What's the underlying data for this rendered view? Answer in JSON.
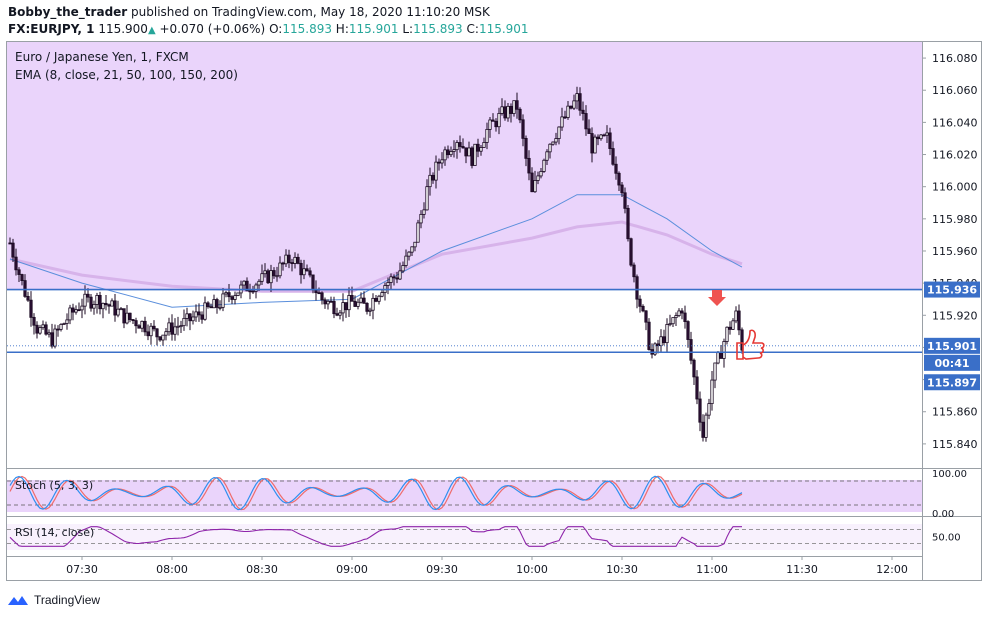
{
  "header": {
    "author": "Bobby_the_trader",
    "published": "published on TradingView.com, May 18, 2020 11:10:20 MSK",
    "symbol": "FX:EURJPY, 1",
    "last": "115.900",
    "change": "+0.070 (+0.06%)",
    "o_label": "O:",
    "o": "115.893",
    "h_label": "H:",
    "h": "115.901",
    "l_label": "L:",
    "l": "115.893",
    "c_label": "C:",
    "c": "115.901"
  },
  "legend": {
    "line1": "Euro / Japanese Yen, 1, FXCM",
    "line2": "EMA (8, close, 21, 50, 100, 150, 200)"
  },
  "chart_data": {
    "type": "candlestick",
    "symbol": "EURJPY",
    "timeframe": "1",
    "price_axis": {
      "ylim": [
        115.825,
        116.09
      ],
      "ticks": [
        "116.080",
        "116.060",
        "116.040",
        "116.020",
        "116.000",
        "115.980",
        "115.960",
        "115.940",
        "115.920",
        "115.900",
        "115.880",
        "115.860",
        "115.840"
      ]
    },
    "time_axis": {
      "xlim": [
        "07:05",
        "12:10"
      ],
      "ticks": [
        "07:30",
        "08:00",
        "08:30",
        "09:00",
        "09:30",
        "10:00",
        "10:30",
        "11:00",
        "11:30",
        "12:00"
      ]
    },
    "price_path": [
      [
        "07:06",
        115.965
      ],
      [
        "07:10",
        115.94
      ],
      [
        "07:15",
        115.912
      ],
      [
        "07:20",
        115.905
      ],
      [
        "07:25",
        115.918
      ],
      [
        "07:30",
        115.928
      ],
      [
        "07:35",
        115.93
      ],
      [
        "07:40",
        115.925
      ],
      [
        "07:45",
        115.918
      ],
      [
        "07:50",
        115.915
      ],
      [
        "07:55",
        115.908
      ],
      [
        "08:00",
        115.912
      ],
      [
        "08:05",
        115.916
      ],
      [
        "08:10",
        115.922
      ],
      [
        "08:15",
        115.926
      ],
      [
        "08:20",
        115.934
      ],
      [
        "08:25",
        115.938
      ],
      [
        "08:30",
        115.942
      ],
      [
        "08:35",
        115.948
      ],
      [
        "08:40",
        115.956
      ],
      [
        "08:45",
        115.944
      ],
      [
        "08:50",
        115.93
      ],
      [
        "08:55",
        115.925
      ],
      [
        "09:00",
        115.928
      ],
      [
        "09:05",
        115.925
      ],
      [
        "09:10",
        115.938
      ],
      [
        "09:15",
        115.945
      ],
      [
        "09:20",
        115.96
      ],
      [
        "09:25",
        115.998
      ],
      [
        "09:30",
        116.02
      ],
      [
        "09:35",
        116.03
      ],
      [
        "09:40",
        116.018
      ],
      [
        "09:45",
        116.035
      ],
      [
        "09:50",
        116.045
      ],
      [
        "09:55",
        116.05
      ],
      [
        "10:00",
        115.995
      ],
      [
        "10:05",
        116.025
      ],
      [
        "10:10",
        116.04
      ],
      [
        "10:15",
        116.055
      ],
      [
        "10:20",
        116.025
      ],
      [
        "10:25",
        116.03
      ],
      [
        "10:30",
        116.0
      ],
      [
        "10:32",
        115.965
      ],
      [
        "10:35",
        115.935
      ],
      [
        "10:40",
        115.895
      ],
      [
        "10:45",
        115.91
      ],
      [
        "10:50",
        115.925
      ],
      [
        "10:55",
        115.87
      ],
      [
        "10:57",
        115.845
      ],
      [
        "11:00",
        115.88
      ],
      [
        "11:05",
        115.91
      ],
      [
        "11:08",
        115.92
      ],
      [
        "11:10",
        115.901
      ]
    ],
    "ema_fast": [
      [
        "07:06",
        115.955
      ],
      [
        "07:30",
        115.94
      ],
      [
        "08:00",
        115.925
      ],
      [
        "08:30",
        115.928
      ],
      [
        "09:00",
        115.93
      ],
      [
        "09:30",
        115.96
      ],
      [
        "10:00",
        115.98
      ],
      [
        "10:15",
        115.995
      ],
      [
        "10:30",
        115.995
      ],
      [
        "10:45",
        115.98
      ],
      [
        "11:00",
        115.96
      ],
      [
        "11:10",
        115.95
      ]
    ],
    "ema_slow": [
      [
        "07:06",
        115.955
      ],
      [
        "07:30",
        115.945
      ],
      [
        "08:00",
        115.938
      ],
      [
        "08:30",
        115.935
      ],
      [
        "09:00",
        115.935
      ],
      [
        "09:30",
        115.958
      ],
      [
        "10:00",
        115.968
      ],
      [
        "10:15",
        115.975
      ],
      [
        "10:30",
        115.978
      ],
      [
        "10:45",
        115.97
      ],
      [
        "11:00",
        115.958
      ],
      [
        "11:10",
        115.952
      ]
    ],
    "horizontal_lines": [
      115.936,
      115.897
    ],
    "price_labels": [
      {
        "text": "115.936",
        "value": 115.936
      },
      {
        "text": "115.901",
        "value": 115.901
      },
      {
        "text": "00:41",
        "value": 115.901
      },
      {
        "text": "115.897",
        "value": 115.897
      }
    ],
    "stoch": {
      "label": "Stoch (5, 3, 3)",
      "ticks": [
        "100.00",
        "0.00"
      ],
      "levels": [
        80,
        20
      ]
    },
    "rsi": {
      "label": "RSI (14, close)",
      "ticks": [
        "50.00"
      ],
      "levels": [
        70,
        30
      ]
    },
    "colors": {
      "upper_zone": "#ead4fb",
      "stoch_zone": "#ead4fb",
      "rsi_zone": "#f8f1fd",
      "hline": "#3a6fc8",
      "ema_fast": "#5b8fdc",
      "ema_slow": "#d7b3ea",
      "candle_up": "#ffffff",
      "candle_down": "#2b1033",
      "stoch_k": "#2f8fef",
      "stoch_d": "#ef6b6b",
      "rsi": "#8e24aa",
      "arrow": "#ef5350",
      "thumb": "#e53935"
    }
  },
  "footer": {
    "brand": "TradingView"
  }
}
